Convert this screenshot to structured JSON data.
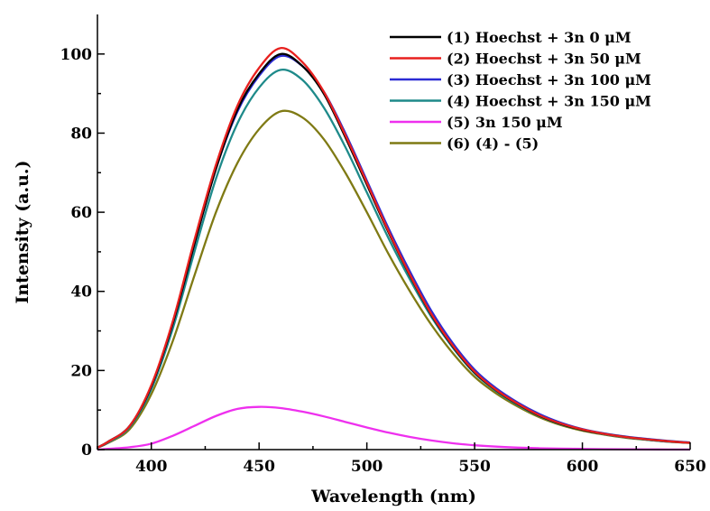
{
  "chart_data": {
    "type": "line",
    "title": "",
    "xlabel": "Wavelength (nm)",
    "ylabel": "Intensity (a.u.)",
    "xlim": [
      375,
      650
    ],
    "ylim": [
      0,
      110
    ],
    "xticks": [
      400,
      450,
      500,
      550,
      600,
      650
    ],
    "yticks": [
      0,
      20,
      40,
      60,
      80,
      100
    ],
    "grid": false,
    "legend_position": "top-right",
    "x": [
      375,
      380,
      390,
      400,
      410,
      420,
      430,
      440,
      450,
      460,
      470,
      480,
      490,
      500,
      510,
      520,
      530,
      540,
      550,
      560,
      570,
      580,
      590,
      600,
      610,
      620,
      630,
      640,
      650
    ],
    "series": [
      {
        "name": "(1) Hoechst + 3n 0 μM",
        "color": "#000000",
        "values": [
          0.5,
          2,
          6,
          16,
          32,
          52,
          71,
          86,
          95,
          100,
          97,
          90,
          79,
          67,
          55,
          44,
          34,
          26,
          19.5,
          15,
          11.5,
          8.6,
          6.5,
          5,
          4,
          3.2,
          2.6,
          2.1,
          1.7
        ]
      },
      {
        "name": "(2) Hoechst + 3n 50 μM",
        "color": "#e8201e",
        "values": [
          0.5,
          2,
          6,
          16.3,
          32.5,
          53,
          72,
          87,
          96.5,
          101.5,
          98,
          90.5,
          79.5,
          67.5,
          55.3,
          44.2,
          34.2,
          26.2,
          19.7,
          15.1,
          11.6,
          8.7,
          6.6,
          5.1,
          4,
          3.2,
          2.6,
          2.1,
          1.7
        ]
      },
      {
        "name": "(3) Hoechst + 3n 100 μM",
        "color": "#2b2bd4",
        "values": [
          0.5,
          2,
          6,
          16,
          32,
          52,
          71,
          85.5,
          94.5,
          99.5,
          97,
          90.5,
          80,
          68,
          56,
          45,
          35,
          26.8,
          20.2,
          15.5,
          11.9,
          9,
          6.8,
          5.2,
          4.1,
          3.3,
          2.7,
          2.2,
          1.8
        ]
      },
      {
        "name": "(4) Hoechst + 3n 150 μM",
        "color": "#1e8a8a",
        "values": [
          0.5,
          1.8,
          5.7,
          15.3,
          30.7,
          50,
          68.5,
          82.5,
          91.5,
          96,
          93.5,
          86.5,
          76.5,
          65,
          53.5,
          43,
          33.5,
          25.7,
          19.3,
          14.8,
          11.3,
          8.5,
          6.4,
          5,
          3.9,
          3.1,
          2.5,
          2,
          1.7
        ]
      },
      {
        "name": "(5) 3n 150 μM",
        "color": "#ee30ee",
        "values": [
          0,
          0.2,
          0.6,
          1.5,
          3.5,
          6,
          8.5,
          10.3,
          10.8,
          10.5,
          9.6,
          8.4,
          7,
          5.6,
          4.3,
          3.2,
          2.3,
          1.6,
          1.1,
          0.75,
          0.5,
          0.35,
          0.25,
          0.18,
          0.12,
          0.08,
          0.05,
          0.03,
          0.02
        ]
      },
      {
        "name": "(6) (4) - (5)",
        "color": "#7f7a14",
        "values": [
          0.5,
          1.7,
          5.2,
          14,
          27.5,
          44,
          60,
          72.5,
          81,
          85.5,
          84,
          78.5,
          70,
          60,
          49.5,
          40,
          31.5,
          24.3,
          18.4,
          14.2,
          10.9,
          8.2,
          6.2,
          4.8,
          3.8,
          3,
          2.45,
          2,
          1.7
        ]
      }
    ]
  }
}
